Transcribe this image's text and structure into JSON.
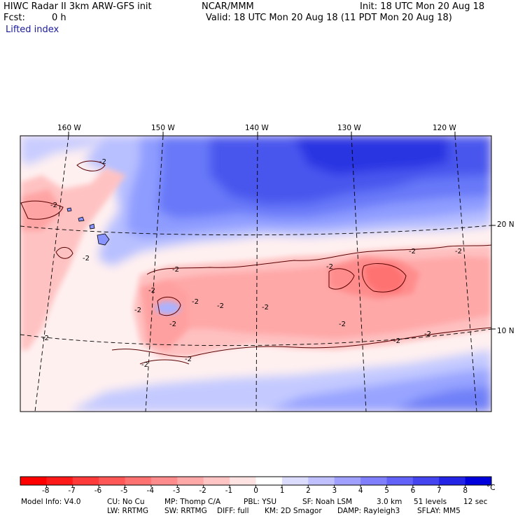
{
  "header": {
    "title_left": "HIWC Radar II 3km ARW-GFS init",
    "org": "NCAR/MMM",
    "init": "Init: 18 UTC Mon 20 Aug 18",
    "fcst_label": "Fcst:",
    "fcst_value": "0 h",
    "valid": "Valid: 18 UTC Mon 20 Aug 18 (11 PDT Mon 20 Aug 18)",
    "field": "Lifted index"
  },
  "map": {
    "lon_labels": [
      "160 W",
      "150 W",
      "140 W",
      "130 W",
      "120 W"
    ],
    "lat_labels": [
      "20 N",
      "10 N"
    ],
    "contour_label": "-2"
  },
  "colorbar": {
    "ticks": [
      "-8",
      "-7",
      "-6",
      "-5",
      "-4",
      "-3",
      "-2",
      "-1",
      "0",
      "1",
      "2",
      "3",
      "4",
      "5",
      "6",
      "7",
      "8"
    ],
    "unit": "°C",
    "colors": [
      "#ff0000",
      "#ff1a1a",
      "#ff3a3a",
      "#ff5656",
      "#ff7272",
      "#ff8c8c",
      "#ffa8a8",
      "#ffc4c4",
      "#ffe2e2",
      "#ffffff",
      "#dcdcff",
      "#c0c0ff",
      "#a0a0ff",
      "#8080ff",
      "#6262f8",
      "#4444f0",
      "#2424e6",
      "#0000dc"
    ]
  },
  "footer": {
    "line1": [
      "Model Info: V4.0",
      "CU: No Cu",
      "MP: Thomp C/A",
      "PBL: YSU",
      "SF: Noah LSM",
      "3.0 km",
      "51 levels",
      "12 sec"
    ],
    "line2": [
      "LW: RRTMG",
      "SW: RRTMG",
      "DIFF: full",
      "KM: 2D Smagor",
      "DAMP: Rayleigh3",
      "SFLAY: MM5"
    ]
  }
}
